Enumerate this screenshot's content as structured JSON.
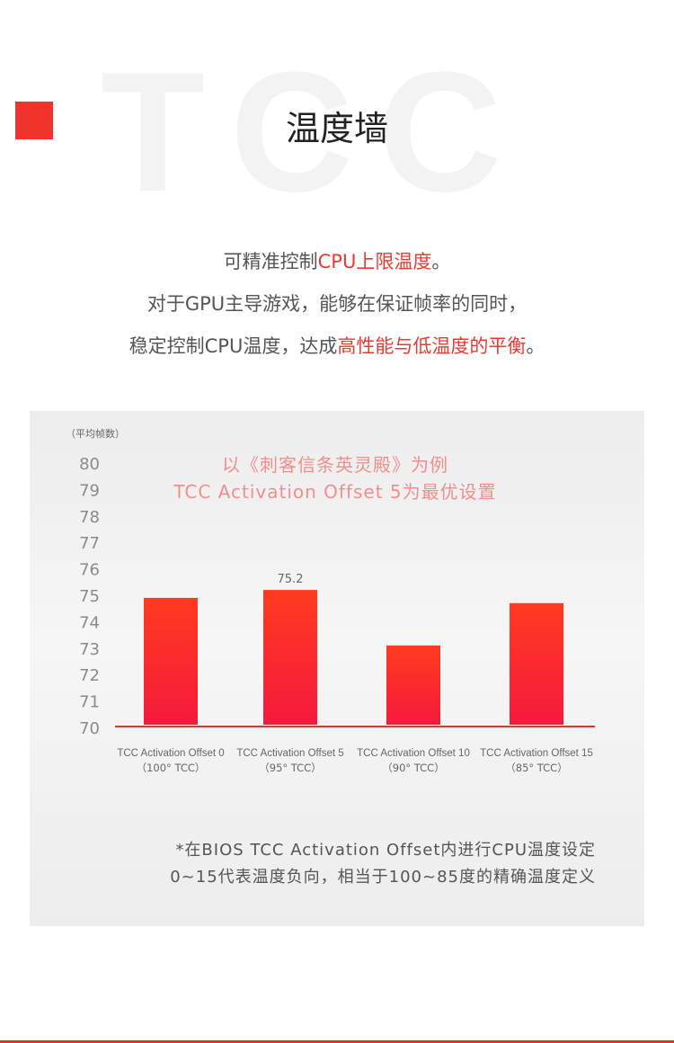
{
  "header": {
    "watermark": "TCC",
    "title": "温度墙"
  },
  "intro": {
    "line1_pre": "可精准控制",
    "line1_hl": "CPU上限温度",
    "line1_post": "。",
    "line2": "对于GPU主导游戏，能够在保证帧率的同时，",
    "line3_pre": "稳定控制CPU温度，达成",
    "line3_hl": "高性能与低温度的平衡",
    "line3_post": "。"
  },
  "colors": {
    "accent": "#f0332b",
    "bar_top": "#ff3b1f",
    "bar_bottom": "#f51a3c",
    "headline": "#f08f8b"
  },
  "chart_data": {
    "type": "bar",
    "title": "以《刺客信条英灵殿》为例",
    "subtitle": "TCC Activation Offset 5为最优设置",
    "ylabel": "（平均帧数）",
    "ylim": [
      70,
      80
    ],
    "yticks": [
      "80",
      "79",
      "78",
      "77",
      "76",
      "75",
      "74",
      "73",
      "72",
      "71",
      "70"
    ],
    "categories": [
      "TCC Activation Offset 0",
      "TCC Activation Offset 5",
      "TCC Activation Offset 10",
      "TCC Activation Offset 15"
    ],
    "sublabels": [
      "（100° TCC）",
      "（95° TCC）",
      "（90° TCC）",
      "（85° TCC）"
    ],
    "values": [
      74.9,
      75.2,
      73.1,
      74.7
    ],
    "data_labels": [
      "",
      "75.2",
      "",
      ""
    ],
    "grid": false
  },
  "footnote": {
    "line1": "*在BIOS TCC Activation Offset内进行CPU温度设定",
    "line2": "0~15代表温度负向，相当于100~85度的精确温度定义"
  }
}
